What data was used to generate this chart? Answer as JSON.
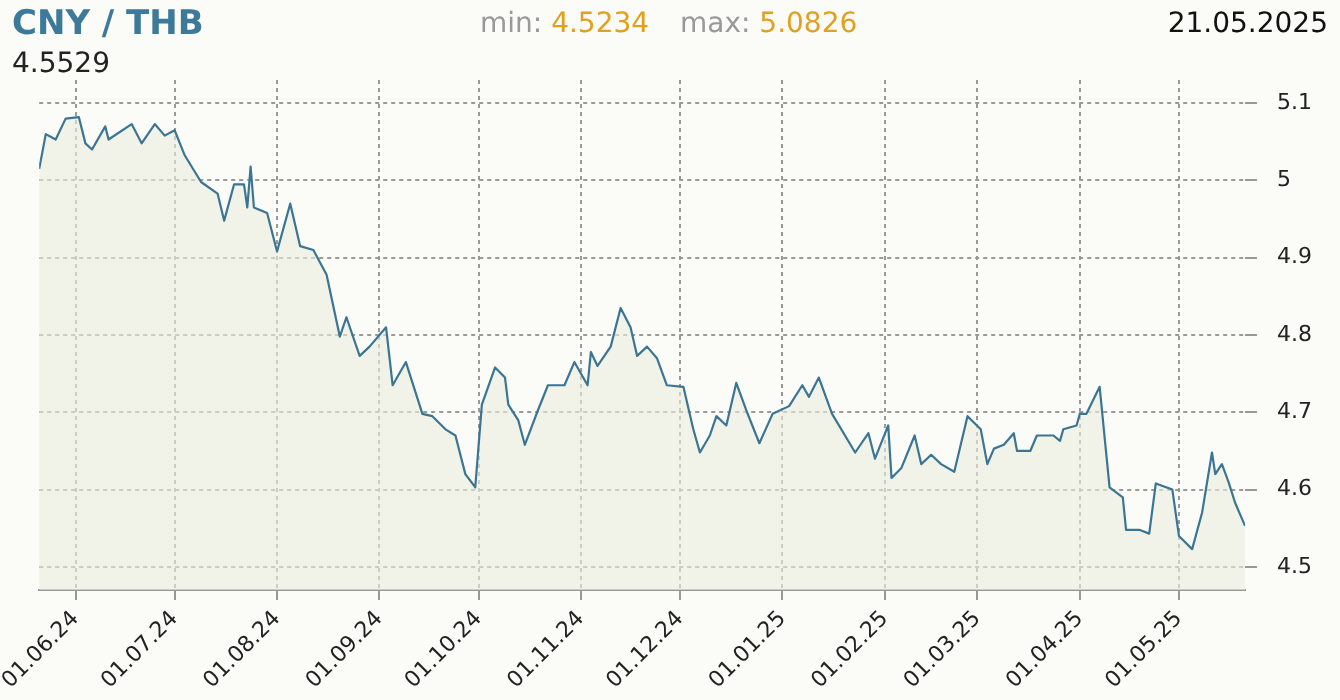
{
  "chart_data": {
    "type": "area",
    "title": "CNY / THB",
    "annotations": [
      "min: 4.5234",
      "max: 5.0826",
      "21.05.2025",
      "4.5529"
    ],
    "x": [
      "2024-05-21",
      "2024-05-23",
      "2024-05-26",
      "2024-05-29",
      "2024-06-02",
      "2024-06-04",
      "2024-06-06",
      "2024-06-10",
      "2024-06-11",
      "2024-06-18",
      "2024-06-21",
      "2024-06-25",
      "2024-06-28",
      "2024-07-01",
      "2024-07-04",
      "2024-07-09",
      "2024-07-14",
      "2024-07-16",
      "2024-07-19",
      "2024-07-22",
      "2024-07-23",
      "2024-07-24",
      "2024-07-25",
      "2024-07-29",
      "2024-08-01",
      "2024-08-05",
      "2024-08-08",
      "2024-08-12",
      "2024-08-16",
      "2024-08-20",
      "2024-08-22",
      "2024-08-26",
      "2024-08-29",
      "2024-09-03",
      "2024-09-05",
      "2024-09-09",
      "2024-09-14",
      "2024-09-17",
      "2024-09-21",
      "2024-09-24",
      "2024-09-27",
      "2024-09-30",
      "2024-10-02",
      "2024-10-06",
      "2024-10-09",
      "2024-10-10",
      "2024-10-13",
      "2024-10-15",
      "2024-10-19",
      "2024-10-22",
      "2024-10-27",
      "2024-10-30",
      "2024-11-03",
      "2024-11-04",
      "2024-11-06",
      "2024-11-10",
      "2024-11-13",
      "2024-11-16",
      "2024-11-18",
      "2024-11-21",
      "2024-11-24",
      "2024-11-27",
      "2024-12-02",
      "2024-12-05",
      "2024-12-07",
      "2024-12-10",
      "2024-12-12",
      "2024-12-15",
      "2024-12-18",
      "2024-12-21",
      "2024-12-25",
      "2024-12-29",
      "2025-01-03",
      "2025-01-07",
      "2025-01-09",
      "2025-01-12",
      "2025-01-16",
      "2025-01-23",
      "2025-01-27",
      "2025-01-29",
      "2025-02-02",
      "2025-02-03",
      "2025-02-06",
      "2025-02-10",
      "2025-02-12",
      "2025-02-15",
      "2025-02-18",
      "2025-02-22",
      "2025-02-26",
      "2025-03-02",
      "2025-03-04",
      "2025-03-06",
      "2025-03-09",
      "2025-03-12",
      "2025-03-13",
      "2025-03-17",
      "2025-03-19",
      "2025-03-24",
      "2025-03-26",
      "2025-03-27",
      "2025-03-31",
      "2025-04-01",
      "2025-04-03",
      "2025-04-07",
      "2025-04-10",
      "2025-04-14",
      "2025-04-15",
      "2025-04-19",
      "2025-04-22",
      "2025-04-24",
      "2025-04-29",
      "2025-05-01",
      "2025-05-05",
      "2025-05-08",
      "2025-05-11",
      "2025-05-12",
      "2025-05-14",
      "2025-05-16",
      "2025-05-18",
      "2025-05-21"
    ],
    "series": [
      {
        "color": "#3a7594",
        "values": [
          5.015,
          5.06,
          5.053,
          5.08,
          5.082,
          5.048,
          5.04,
          5.07,
          5.053,
          5.073,
          5.048,
          5.073,
          5.058,
          5.065,
          5.033,
          4.998,
          4.983,
          4.948,
          4.995,
          4.995,
          4.965,
          5.018,
          4.965,
          4.958,
          4.908,
          4.97,
          4.915,
          4.91,
          4.878,
          4.798,
          4.823,
          4.773,
          4.785,
          4.81,
          4.735,
          4.765,
          4.698,
          4.695,
          4.678,
          4.67,
          4.62,
          4.603,
          4.71,
          4.758,
          4.745,
          4.71,
          4.69,
          4.658,
          4.703,
          4.735,
          4.735,
          4.765,
          4.735,
          4.778,
          4.76,
          4.785,
          4.835,
          4.81,
          4.773,
          4.785,
          4.77,
          4.735,
          4.733,
          4.678,
          4.648,
          4.67,
          4.695,
          4.683,
          4.738,
          4.703,
          4.66,
          4.698,
          4.708,
          4.735,
          4.72,
          4.745,
          4.698,
          4.648,
          4.673,
          4.64,
          4.683,
          4.615,
          4.628,
          4.67,
          4.633,
          4.645,
          4.633,
          4.623,
          4.695,
          4.678,
          4.633,
          4.653,
          4.658,
          4.673,
          4.65,
          4.65,
          4.67,
          4.67,
          4.663,
          4.678,
          4.683,
          4.698,
          4.698,
          4.733,
          4.603,
          4.59,
          4.548,
          4.548,
          4.543,
          4.608,
          4.6,
          4.54,
          4.523,
          4.57,
          4.648,
          4.62,
          4.633,
          4.61,
          4.583,
          4.553
        ]
      }
    ],
    "xlim": [
      "2024-05-21",
      "2025-05-21"
    ],
    "xticks": [
      {
        "value": "2024-06-01",
        "label": "01.06.24"
      },
      {
        "value": "2024-07-01",
        "label": "01.07.24"
      },
      {
        "value": "2024-08-01",
        "label": "01.08.24"
      },
      {
        "value": "2024-09-01",
        "label": "01.09.24"
      },
      {
        "value": "2024-10-01",
        "label": "01.10.24"
      },
      {
        "value": "2024-11-01",
        "label": "01.11.24"
      },
      {
        "value": "2024-12-01",
        "label": "01.12.24"
      },
      {
        "value": "2025-01-01",
        "label": "01.01.25"
      },
      {
        "value": "2025-02-01",
        "label": "01.02.25"
      },
      {
        "value": "2025-03-01",
        "label": "01.03.25"
      },
      {
        "value": "2025-04-01",
        "label": "01.04.25"
      },
      {
        "value": "2025-05-01",
        "label": "01.05.25"
      }
    ],
    "ylim": [
      4.47,
      5.13
    ],
    "yticks": [
      4.5,
      4.6,
      4.7,
      4.8,
      4.9,
      5,
      5.1
    ],
    "grid": true,
    "legend": false
  }
}
